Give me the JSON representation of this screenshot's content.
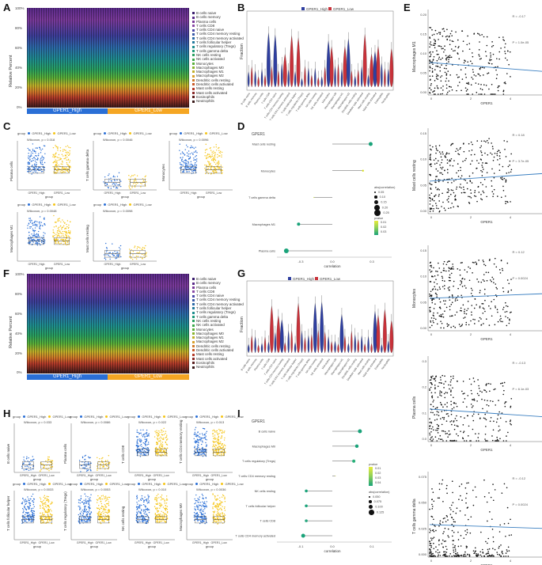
{
  "panels": {
    "A": {
      "letter": "A",
      "ylabel": "Relative Percent",
      "yticks": [
        "100%",
        "80%",
        "60%",
        "40%",
        "20%",
        "0%"
      ],
      "groups": [
        {
          "label": "GPER1_High",
          "color": "#2a6fd6"
        },
        {
          "label": "GPER1_Low",
          "color": "#f5a623"
        }
      ],
      "legend": [
        "B cells naive",
        "B cells memory",
        "Plasma cells",
        "T cells CD8",
        "T cells CD4 naive",
        "T cells CD4 memory resting",
        "T cells CD4 memory activated",
        "T cells follicular helper",
        "T cells regulatory (Tregs)",
        "T cells gamma delta",
        "NK cells resting",
        "NK cells activated",
        "Monocytes",
        "Macrophages M0",
        "Macrophages M1",
        "Macrophages M2",
        "Dendritic cells resting",
        "Dendritic cells activated",
        "Mast cells resting",
        "Mast cells activated",
        "Eosinophils",
        "Neutrophils"
      ]
    },
    "B": {
      "letter": "B",
      "ylabel": "Fraction",
      "legend": [
        "GPER1_High",
        "GPER1_Low"
      ]
    },
    "C": {
      "letter": "C",
      "xlabel": "group",
      "legend_title": "group",
      "legend_items": [
        "GPER1_High",
        "GPER1_Low"
      ],
      "subplots": [
        {
          "title": "Wilcoxon, p = 0.018",
          "ylabel": "Plasma cells"
        },
        {
          "title": "Wilcoxon, p = 0.0046",
          "ylabel": "T cells gamma delta"
        },
        {
          "title": "Wilcoxon, p = 0.0096",
          "ylabel": "Monocytes"
        },
        {
          "title": "Wilcoxon, p = 0.0048",
          "ylabel": "Macrophages M1"
        },
        {
          "title": "Wilcoxon, p = 0.0098",
          "ylabel": "Mast cells resting"
        }
      ]
    },
    "D": {
      "letter": "D",
      "title": "GPER1",
      "xlabel": "correlation",
      "rows": [
        "Mast cells resting",
        "Monocytes",
        "T cells gamma delta",
        "Macrophages M1",
        "Plasma cells"
      ],
      "xticks": [
        "-0.3",
        "0.0",
        "0.3"
      ],
      "legend": {
        "size_title": "abs(correlation)",
        "sizes": [
          "0.05",
          "0.10",
          "0.15",
          "0.20",
          "0.25"
        ],
        "color_title": "pvalue",
        "colors": [
          "0.01",
          "0.02",
          "0.03"
        ]
      }
    },
    "E": {
      "letter": "E",
      "xlabel": "GPER1",
      "subplots": [
        {
          "ylabel": "Macrophages M1",
          "r": "R = -0.17",
          "p": "P = 1.0e-05",
          "yticks": [
            "0.20",
            "0.15",
            "0.10",
            "0.05",
            "0.00"
          ],
          "xticks": [
            "0",
            "2",
            "4"
          ]
        },
        {
          "ylabel": "Mast cells resting",
          "r": "R = 0.18",
          "p": "P = 3.7e-05",
          "yticks": [
            "0.15",
            "0.10",
            "0.05",
            "0.00"
          ],
          "xticks": [
            "0",
            "2",
            "4"
          ]
        },
        {
          "ylabel": "Monocytes",
          "r": "R = 0.12",
          "p": "P = 0.0024",
          "yticks": [
            "0.15",
            "0.10",
            "0.05",
            "0.00"
          ],
          "xticks": [
            "0",
            "2",
            "4"
          ]
        },
        {
          "ylabel": "Plasma cells",
          "r": "R = -0.13",
          "p": "P = 6.1e-03",
          "yticks": [
            "0.3",
            "0.2",
            "0.1",
            "0.0"
          ],
          "xticks": [
            "0",
            "2",
            "4"
          ]
        },
        {
          "ylabel": "T cells gamma delta",
          "r": "R = -0.12",
          "p": "P = 0.0024",
          "yticks": [
            "0.075",
            "0.050",
            "0.025",
            "0.000"
          ],
          "xticks": [
            "0",
            "2",
            "4"
          ]
        }
      ]
    },
    "F": {
      "letter": "F",
      "ylabel": "Relative Percent",
      "yticks": [
        "100%",
        "80%",
        "60%",
        "40%",
        "20%",
        "0%"
      ],
      "groups": [
        {
          "label": "GPER1_High",
          "color": "#2a6fd6"
        },
        {
          "label": "GPER1_Low",
          "color": "#f5a623"
        }
      ]
    },
    "G": {
      "letter": "G",
      "ylabel": "Fraction",
      "legend": [
        "GPER1_High",
        "GPER1_Low"
      ]
    },
    "H": {
      "letter": "H",
      "xlabel": "group",
      "legend_title": "group",
      "legend_items": [
        "GPER1_High",
        "GPER1_Low"
      ],
      "subplots": [
        {
          "title": "Wilcoxon, p = 0.033",
          "ylabel": "B cells naive"
        },
        {
          "title": "Wilcoxon, p = 0.0086",
          "ylabel": "Plasma cells"
        },
        {
          "title": "Wilcoxon, p = 0.022",
          "ylabel": "T cells CD8"
        },
        {
          "title": "Wilcoxon, p = 0.013",
          "ylabel": "T cells CD4 memory resting"
        },
        {
          "title": "Wilcoxon, p = 0.0033",
          "ylabel": "T cells follicular helper"
        },
        {
          "title": "Wilcoxon, p = 0.0053",
          "ylabel": "T cells regulatory (Tregs)"
        },
        {
          "title": "Wilcoxon, p = 0.010",
          "ylabel": "NK cells resting"
        },
        {
          "title": "Wilcoxon, p = 0.0036",
          "ylabel": "Macrophages M0"
        }
      ]
    },
    "I": {
      "letter": "I",
      "title": "GPER1",
      "rows": [
        "B cells naive",
        "Macrophages M0",
        "T cells regulatory (Tregs)",
        "T cells CD4 memory resting",
        "NK cells resting",
        "T cells follicular helper",
        "T cells CD8",
        "T cells CD4 memory activated"
      ],
      "xlabel": "correlation",
      "xticks": [
        "-0.1",
        "0.0",
        "0.1"
      ],
      "legend": {
        "color_title": "pvalue",
        "colors": [
          "0.01",
          "0.02",
          "0.03",
          "0.04"
        ],
        "size_title": "abs(correlation)",
        "sizes": [
          "0.050",
          "0.075",
          "0.100",
          "0.125"
        ]
      }
    }
  },
  "colors": {
    "high": "#2a6fd6",
    "low": "#f5c518",
    "violin_high": "#2f3fa0",
    "violin_low": "#c8323a",
    "lollipop": "#1aa37a"
  }
}
